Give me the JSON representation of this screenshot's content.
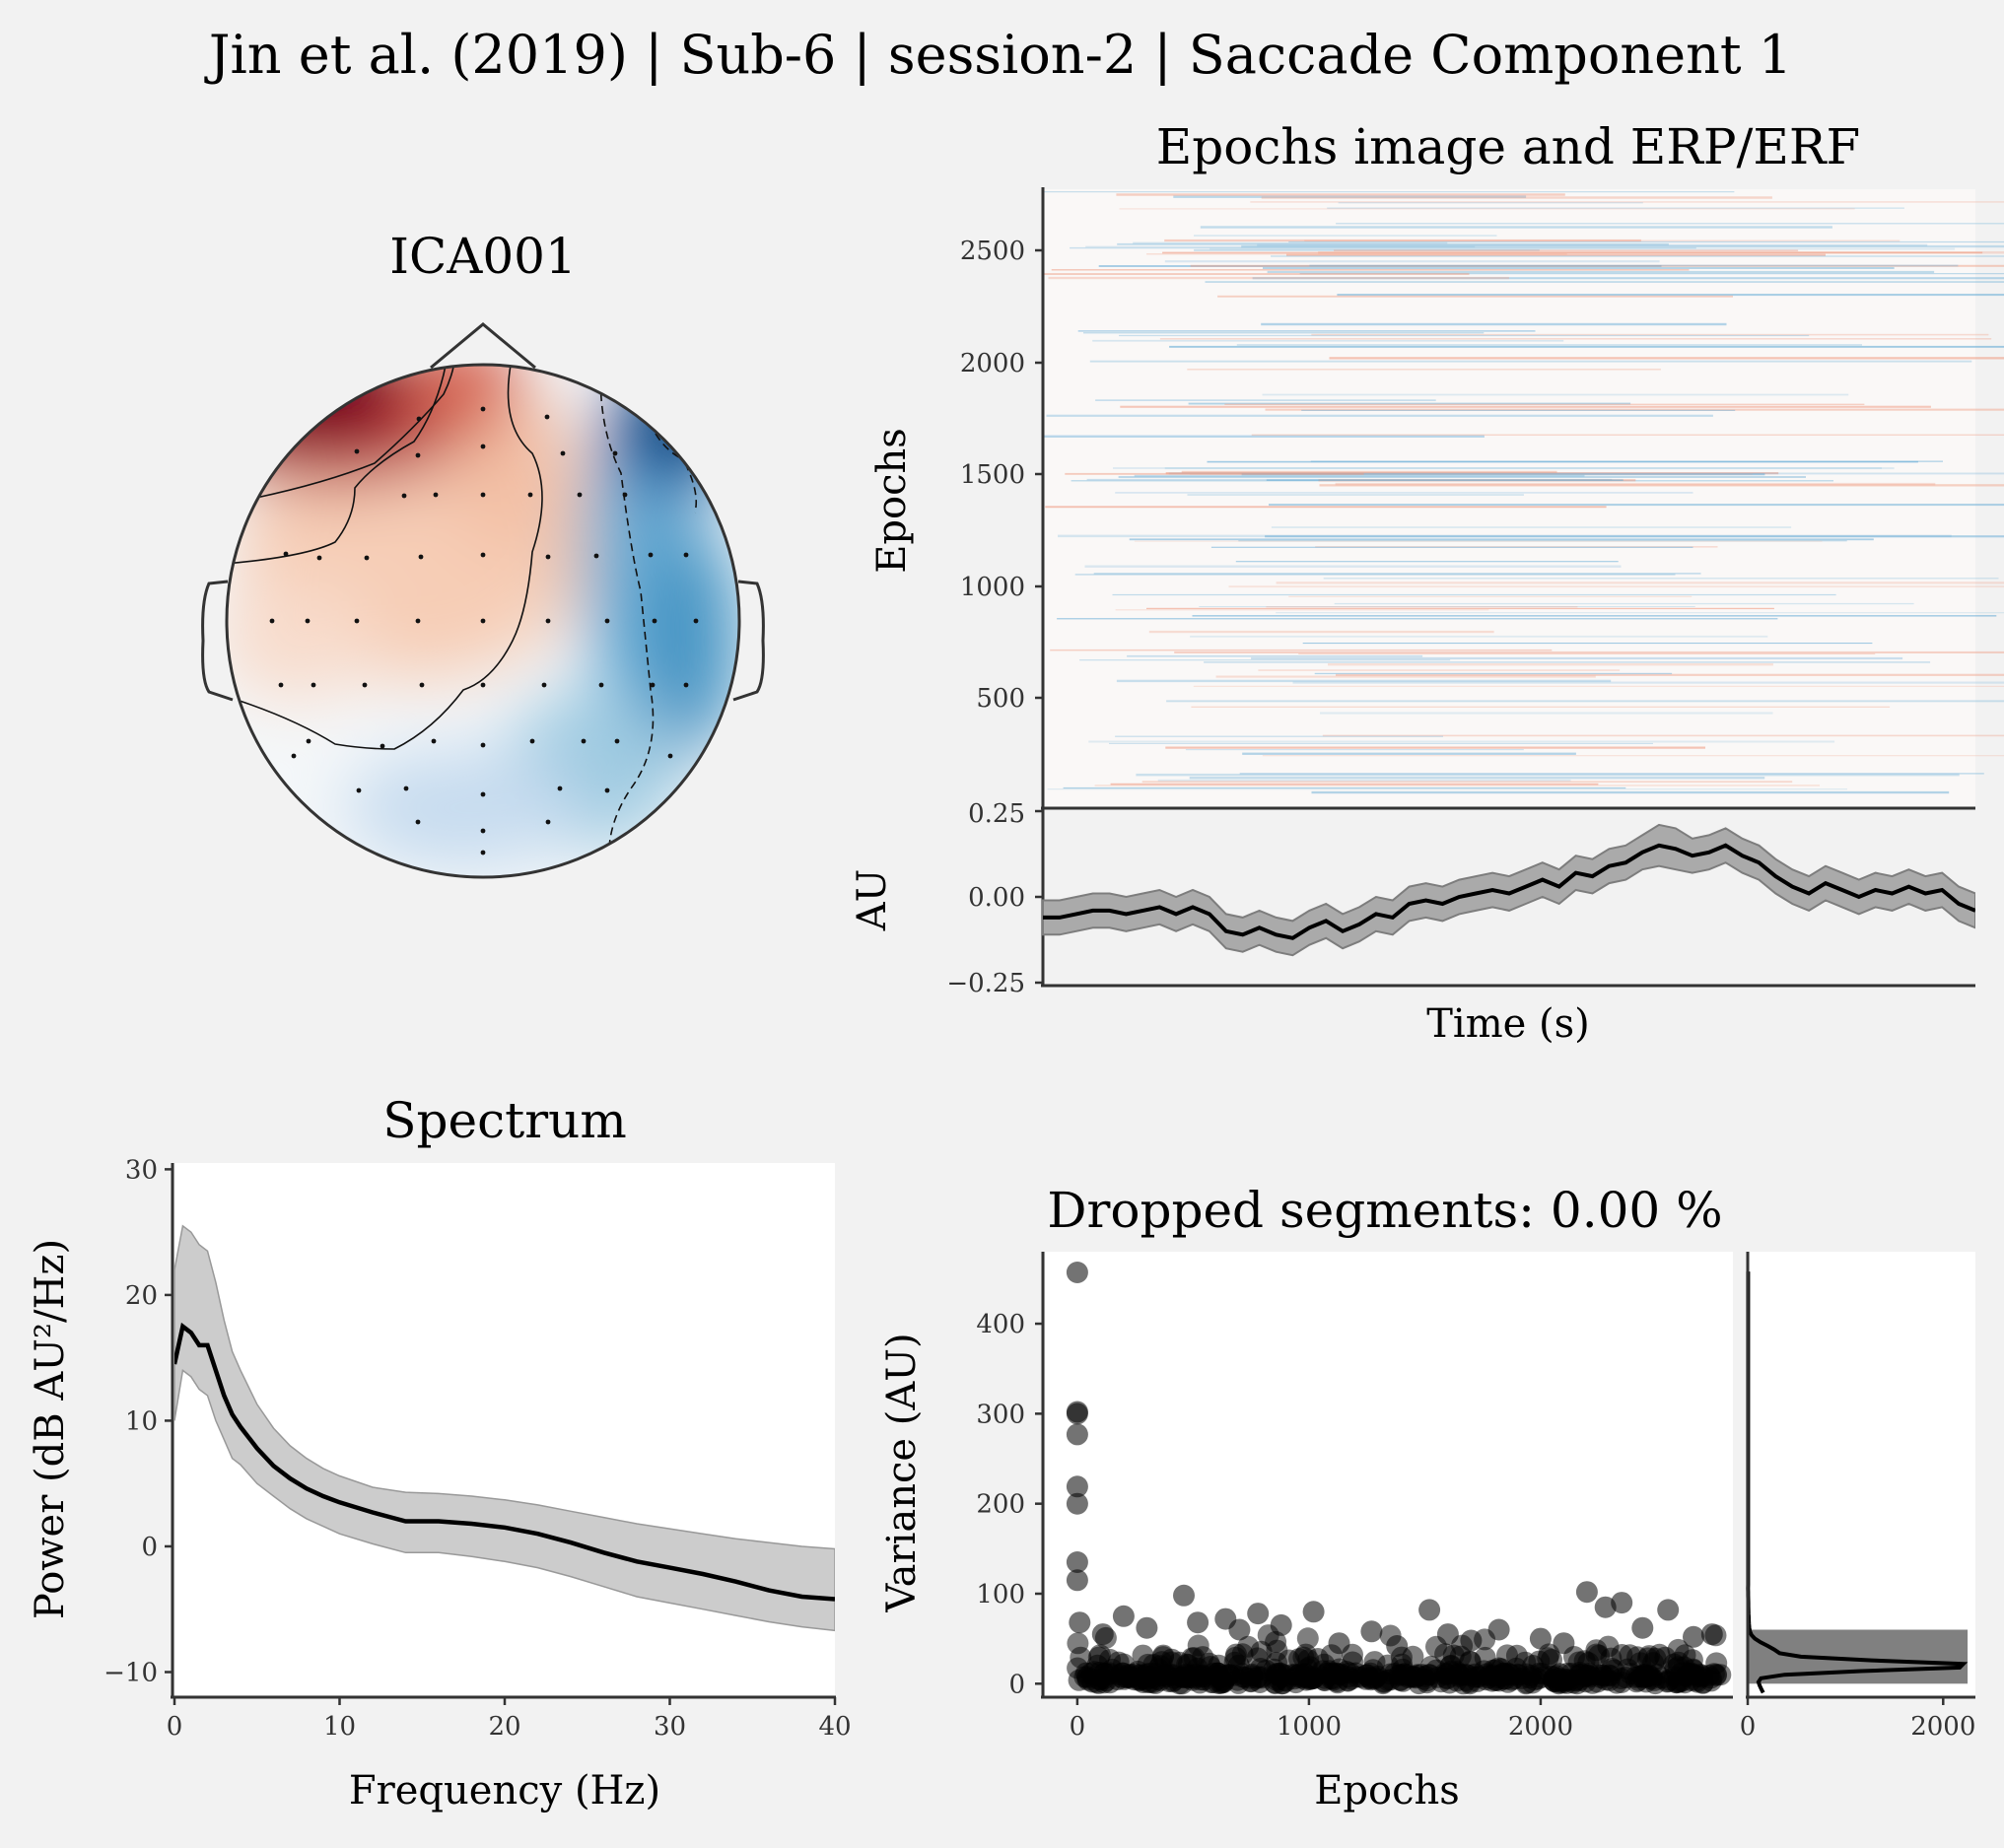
{
  "suptitle": "Jin et al. (2019) | Sub-6 | session-2 | Saccade Component 1",
  "colors": {
    "background": "#f2f2f2",
    "positive": "#67001f",
    "negative": "#053061",
    "trace": "#000000",
    "band": "#aaaaaa"
  },
  "chart_data": [
    {
      "type": "heatmap",
      "panel": "topomap",
      "title": "ICA001",
      "colormap": "RdBu_r",
      "description_values": {
        "max_region": "left-frontal",
        "min_region": "right-frontal"
      }
    },
    {
      "type": "heatmap",
      "panel": "epochs-image",
      "title": "Epochs image and ERP/ERF",
      "ylabel": "Epochs",
      "yticks": [
        "500",
        "1000",
        "1500",
        "2000",
        "2500"
      ],
      "ylim": [
        0,
        2780
      ]
    },
    {
      "type": "line",
      "panel": "erp",
      "xlabel": "Time (s)",
      "ylabel": "AU",
      "yticks": [
        "0.25",
        "0.00",
        "−0.25"
      ],
      "ylim": [
        -0.25,
        0.25
      ],
      "mean": [
        -0.06,
        -0.06,
        -0.05,
        -0.04,
        -0.04,
        -0.05,
        -0.04,
        -0.03,
        -0.05,
        -0.03,
        -0.05,
        -0.1,
        -0.11,
        -0.09,
        -0.11,
        -0.12,
        -0.09,
        -0.07,
        -0.1,
        -0.08,
        -0.05,
        -0.06,
        -0.02,
        -0.01,
        -0.02,
        0.0,
        0.01,
        0.02,
        0.01,
        0.03,
        0.05,
        0.03,
        0.07,
        0.06,
        0.09,
        0.1,
        0.13,
        0.15,
        0.14,
        0.12,
        0.13,
        0.15,
        0.12,
        0.1,
        0.06,
        0.03,
        0.01,
        0.04,
        0.02,
        0.0,
        0.02,
        0.01,
        0.03,
        0.01,
        0.02,
        -0.02,
        -0.04
      ],
      "upper": [
        -0.01,
        -0.01,
        0.0,
        0.01,
        0.01,
        0.0,
        0.01,
        0.02,
        0.0,
        0.02,
        0.0,
        -0.05,
        -0.06,
        -0.04,
        -0.06,
        -0.07,
        -0.04,
        -0.02,
        -0.05,
        -0.03,
        0.0,
        -0.01,
        0.03,
        0.04,
        0.03,
        0.05,
        0.06,
        0.07,
        0.06,
        0.08,
        0.1,
        0.08,
        0.12,
        0.11,
        0.14,
        0.15,
        0.18,
        0.21,
        0.2,
        0.17,
        0.18,
        0.2,
        0.17,
        0.15,
        0.11,
        0.08,
        0.06,
        0.09,
        0.07,
        0.05,
        0.07,
        0.06,
        0.08,
        0.06,
        0.07,
        0.03,
        0.01
      ],
      "lower": [
        -0.11,
        -0.11,
        -0.1,
        -0.09,
        -0.09,
        -0.1,
        -0.09,
        -0.08,
        -0.1,
        -0.08,
        -0.1,
        -0.15,
        -0.16,
        -0.14,
        -0.16,
        -0.17,
        -0.14,
        -0.12,
        -0.15,
        -0.13,
        -0.1,
        -0.11,
        -0.07,
        -0.06,
        -0.07,
        -0.05,
        -0.04,
        -0.03,
        -0.04,
        -0.02,
        0.0,
        -0.02,
        0.02,
        0.01,
        0.04,
        0.05,
        0.08,
        0.09,
        0.08,
        0.07,
        0.08,
        0.1,
        0.07,
        0.05,
        0.01,
        -0.02,
        -0.04,
        -0.01,
        -0.03,
        -0.05,
        -0.03,
        -0.04,
        -0.02,
        -0.04,
        -0.03,
        -0.07,
        -0.09
      ]
    },
    {
      "type": "line",
      "panel": "spectrum",
      "title": "Spectrum",
      "xlabel": "Frequency (Hz)",
      "ylabel": "Power (dB AU²/Hz)",
      "xlim": [
        0,
        40
      ],
      "ylim": [
        -12,
        30.5
      ],
      "xticks": [
        0,
        10,
        20,
        30,
        40
      ],
      "yticks": [
        -10,
        0,
        10,
        20,
        30
      ],
      "x": [
        0,
        0.5,
        1,
        1.5,
        2,
        2.5,
        3,
        3.5,
        4,
        5,
        6,
        7,
        8,
        9,
        10,
        12,
        14,
        16,
        18,
        20,
        22,
        24,
        26,
        28,
        30,
        32,
        34,
        36,
        38,
        40
      ],
      "mean": [
        14.5,
        17.5,
        17.0,
        16.0,
        16.0,
        14.0,
        12.0,
        10.5,
        9.5,
        7.8,
        6.4,
        5.4,
        4.6,
        4.0,
        3.5,
        2.7,
        2.0,
        2.0,
        1.8,
        1.5,
        1.0,
        0.3,
        -0.5,
        -1.2,
        -1.7,
        -2.2,
        -2.8,
        -3.5,
        -4.0,
        -4.2
      ],
      "upper": [
        22.0,
        25.5,
        25.0,
        24.0,
        23.5,
        21.0,
        18.0,
        15.5,
        14.0,
        11.3,
        9.4,
        8.0,
        7.0,
        6.2,
        5.6,
        4.7,
        4.3,
        4.2,
        4.0,
        3.7,
        3.3,
        2.8,
        2.3,
        1.8,
        1.4,
        1.0,
        0.6,
        0.3,
        0.0,
        -0.2
      ],
      "lower": [
        10.0,
        14.0,
        13.5,
        12.5,
        12.0,
        10.0,
        8.5,
        7.0,
        6.5,
        5.0,
        4.0,
        3.0,
        2.2,
        1.6,
        1.0,
        0.2,
        -0.5,
        -0.5,
        -0.8,
        -1.2,
        -1.7,
        -2.4,
        -3.2,
        -4.0,
        -4.5,
        -5.0,
        -5.5,
        -6.0,
        -6.4,
        -6.7
      ]
    },
    {
      "type": "scatter",
      "panel": "variance",
      "title": "Dropped segments: 0.00 %",
      "xlabel": "Epochs",
      "ylabel": "Variance (AU)",
      "xlim": [
        -140,
        2830
      ],
      "ylim": [
        -15,
        480
      ],
      "xticks": [
        0,
        1000,
        2000
      ],
      "yticks": [
        0,
        100,
        200,
        300,
        400
      ],
      "outliers": [
        [
          0,
          457
        ],
        [
          0,
          302
        ],
        [
          0,
          300
        ],
        [
          0,
          277
        ],
        [
          0,
          219
        ],
        [
          0,
          200
        ],
        [
          0,
          135
        ],
        [
          0,
          115
        ],
        [
          10,
          68
        ],
        [
          110,
          55
        ],
        [
          200,
          75
        ],
        [
          300,
          62
        ],
        [
          460,
          98
        ],
        [
          520,
          68
        ],
        [
          640,
          72
        ],
        [
          700,
          60
        ],
        [
          780,
          78
        ],
        [
          880,
          65
        ],
        [
          1020,
          80
        ],
        [
          1130,
          45
        ],
        [
          1270,
          58
        ],
        [
          1380,
          42
        ],
        [
          1520,
          82
        ],
        [
          1600,
          55
        ],
        [
          1700,
          48
        ],
        [
          1820,
          60
        ],
        [
          2000,
          50
        ],
        [
          2100,
          45
        ],
        [
          2200,
          102
        ],
        [
          2280,
          85
        ],
        [
          2350,
          90
        ],
        [
          2440,
          62
        ],
        [
          2550,
          82
        ],
        [
          2660,
          52
        ],
        [
          2740,
          55
        ]
      ]
    },
    {
      "type": "bar",
      "panel": "variance-histogram",
      "orientation": "horizontal",
      "xticks": [
        0,
        2000
      ],
      "xlim": [
        0,
        2330
      ],
      "bins": [
        [
          0,
          60,
          2250
        ]
      ],
      "kde_peak": [
        2250,
        20
      ]
    }
  ]
}
